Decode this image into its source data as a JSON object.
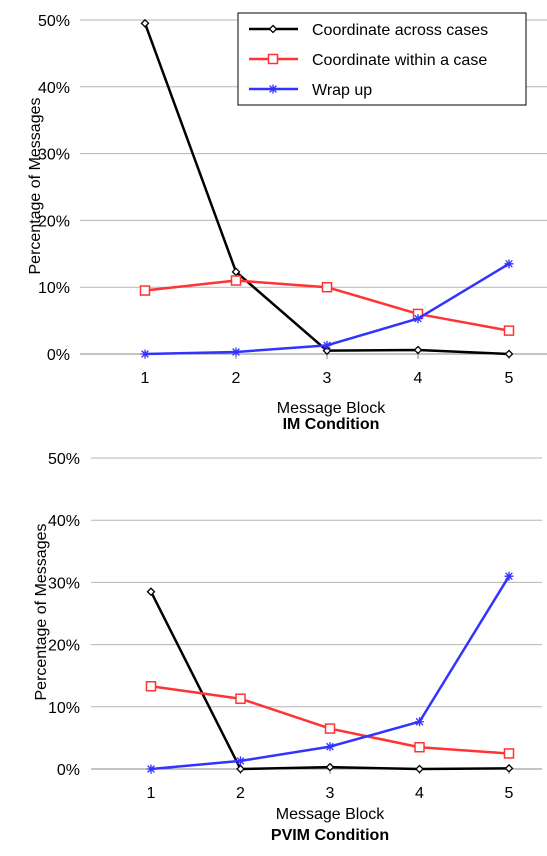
{
  "chart_data": [
    {
      "type": "line",
      "x": [
        1,
        2,
        3,
        4,
        5
      ],
      "xlabel": "Message Block",
      "subtitle": "IM Condition",
      "ylabel": "Percentage of Messages",
      "ylim": [
        0,
        50
      ],
      "yticks": [
        "0%",
        "10%",
        "20%",
        "30%",
        "40%",
        "50%"
      ],
      "xticks": [
        "1",
        "2",
        "3",
        "4",
        "5"
      ],
      "legend_position": "top-right",
      "series": [
        {
          "name": "Coordinate across cases",
          "color": "#000000",
          "marker": "diamond",
          "values": [
            49.5,
            12.3,
            0.5,
            0.6,
            0.0
          ]
        },
        {
          "name": "Coordinate within a case",
          "color": "#ff3333",
          "marker": "square",
          "values": [
            9.5,
            11.0,
            10.0,
            6.0,
            3.5
          ]
        },
        {
          "name": "Wrap up",
          "color": "#3333ff",
          "marker": "asterisk",
          "values": [
            0.0,
            0.3,
            1.3,
            5.3,
            13.5
          ]
        }
      ]
    },
    {
      "type": "line",
      "x": [
        1,
        2,
        3,
        4,
        5
      ],
      "xlabel": "Message Block",
      "subtitle": "PVIM Condition",
      "ylabel": "Percentage of Messages",
      "ylim": [
        0,
        50
      ],
      "yticks": [
        "0%",
        "10%",
        "20%",
        "30%",
        "40%",
        "50%"
      ],
      "xticks": [
        "1",
        "2",
        "3",
        "4",
        "5"
      ],
      "series": [
        {
          "name": "Coordinate across cases",
          "color": "#000000",
          "marker": "diamond",
          "values": [
            28.5,
            0.0,
            0.3,
            0.0,
            0.1
          ]
        },
        {
          "name": "Coordinate within a case",
          "color": "#ff3333",
          "marker": "square",
          "values": [
            13.3,
            11.3,
            6.5,
            3.5,
            2.5
          ]
        },
        {
          "name": "Wrap up",
          "color": "#3333ff",
          "marker": "asterisk",
          "values": [
            0.0,
            1.3,
            3.6,
            7.6,
            31.0
          ]
        }
      ]
    }
  ]
}
